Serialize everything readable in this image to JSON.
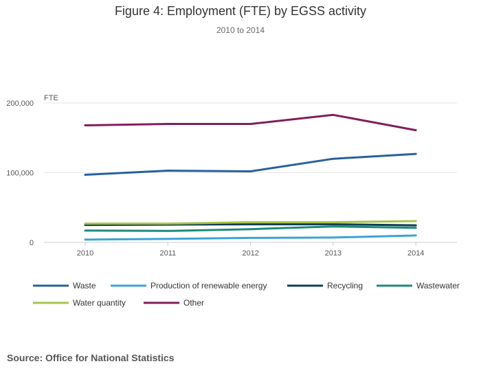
{
  "chart_data": {
    "type": "line",
    "title": "Figure 4: Employment (FTE) by EGSS activity",
    "subtitle": "2010 to 2014",
    "ylabel": "FTE",
    "xlabel": "",
    "x": [
      "2010",
      "2011",
      "2012",
      "2013",
      "2014"
    ],
    "ylim": [
      0,
      200000
    ],
    "yticks": [
      0,
      100000,
      200000
    ],
    "ytick_labels": [
      "0",
      "100,000",
      "200,000"
    ],
    "grid": true,
    "legend_position": "bottom",
    "series": [
      {
        "name": "Waste",
        "color": "#27609a",
        "values": [
          97000,
          103000,
          102000,
          120000,
          127000
        ]
      },
      {
        "name": "Production of renewable energy",
        "color": "#3aa3d6",
        "values": [
          4000,
          5000,
          6500,
          7000,
          10000
        ]
      },
      {
        "name": "Recycling",
        "color": "#0f3c54",
        "values": [
          25000,
          25500,
          26000,
          26000,
          24500
        ]
      },
      {
        "name": "Wastewater",
        "color": "#1c8a7a",
        "values": [
          17000,
          16500,
          19000,
          23000,
          21000
        ]
      },
      {
        "name": "Water quantity",
        "color": "#a7c24a",
        "values": [
          27000,
          27000,
          29000,
          29000,
          30500
        ]
      },
      {
        "name": "Other",
        "color": "#7f1e5d",
        "values": [
          168000,
          170000,
          170000,
          183000,
          161000
        ]
      }
    ]
  },
  "source": "Source: Office for National Statistics"
}
